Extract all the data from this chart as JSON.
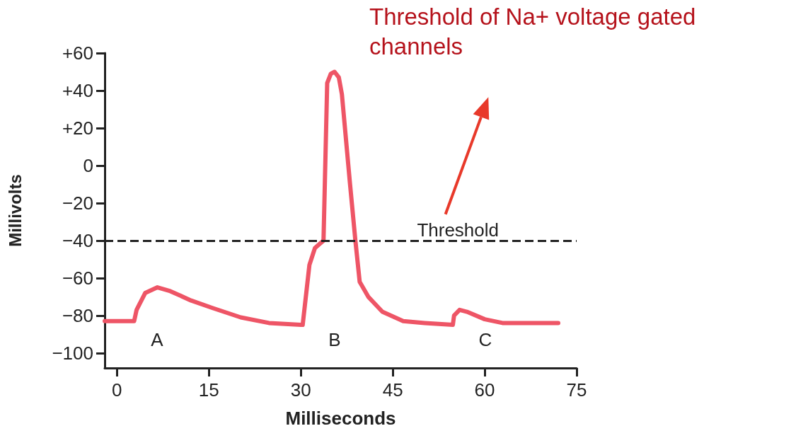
{
  "chart_data": {
    "type": "line",
    "xlabel": "Milliseconds",
    "ylabel": "Millivolts",
    "x": [
      -2,
      2.8,
      3.2,
      4.6,
      6.6,
      8.7,
      12.1,
      15.6,
      20.2,
      24.8,
      30,
      30.3,
      31.4,
      32.3,
      33.7,
      34.3,
      34.9,
      35.5,
      36.2,
      36.7,
      38,
      38.9,
      39.6,
      41,
      43.3,
      46.7,
      50.2,
      54.8,
      55,
      55.9,
      57.1,
      60,
      62.9,
      72
    ],
    "series": [
      {
        "color": "#ee5566",
        "values": [
          -83,
          -83,
          -77,
          -68,
          -65,
          -67,
          -72,
          -76,
          -81,
          -84,
          -85,
          -85,
          -53,
          -44,
          -40,
          44,
          49,
          50,
          47,
          38,
          -9,
          -40,
          -62,
          -70,
          -78,
          -83,
          -84,
          -85,
          -80,
          -77,
          -78,
          -82,
          -84,
          -84
        ]
      }
    ],
    "xlim": [
      -2,
      75
    ],
    "xticks": [
      0,
      15,
      30,
      45,
      60,
      75
    ],
    "ylim": [
      -108,
      60
    ],
    "yticks": [
      {
        "value": 60,
        "label": "+60"
      },
      {
        "value": 40,
        "label": "+40"
      },
      {
        "value": 20,
        "label": "+20"
      },
      0,
      {
        "value": -20,
        "label": "−20"
      },
      {
        "value": -40,
        "label": "−40"
      },
      {
        "value": -60,
        "label": "−60"
      },
      {
        "value": -80,
        "label": "−80"
      },
      {
        "value": -100,
        "label": "−100"
      }
    ],
    "ref_lines": [
      {
        "axis": "y",
        "value": -40,
        "label": "Threshold",
        "color": "#222222",
        "line_style": "dashed"
      }
    ],
    "annotations": [
      "A",
      "B",
      "C",
      "Threshold of Na+ voltage gated\nchannels"
    ],
    "grid": false,
    "marker": "none",
    "line_style": "solid"
  }
}
